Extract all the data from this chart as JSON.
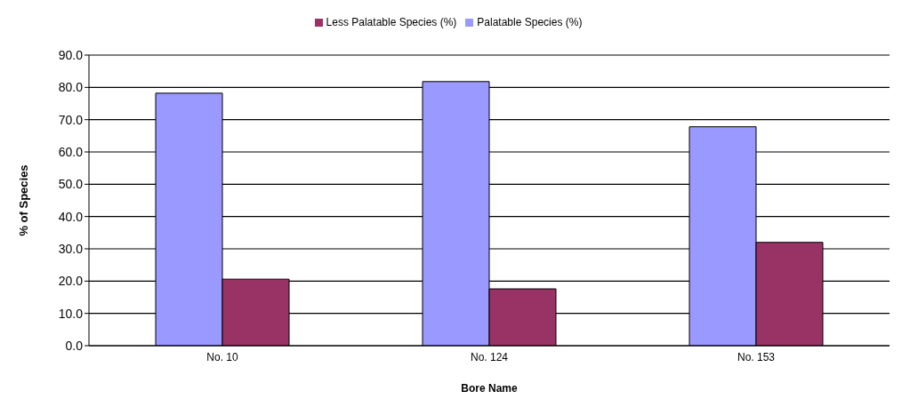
{
  "chart_data": {
    "type": "bar",
    "xlabel": "Bore Name",
    "ylabel": "% of Species",
    "categories": [
      "No. 10",
      "No. 124",
      "No. 153"
    ],
    "series": [
      {
        "name": "Palatable Species (%)",
        "color": "#9999ff",
        "values": [
          78.2,
          81.8,
          67.8
        ]
      },
      {
        "name": "Less Palatable Species (%)",
        "color": "#993366",
        "values": [
          20.6,
          17.6,
          32.0
        ]
      }
    ],
    "ylim": [
      0,
      90
    ],
    "yticks": [
      {
        "value": 0,
        "label": "0.0"
      },
      {
        "value": 10,
        "label": "10.0"
      },
      {
        "value": 20,
        "label": "20.0"
      },
      {
        "value": 30,
        "label": "30.0"
      },
      {
        "value": 40,
        "label": "40.0"
      },
      {
        "value": 50,
        "label": "50.0"
      },
      {
        "value": 60,
        "label": "60.0"
      },
      {
        "value": 70,
        "label": "70.0"
      },
      {
        "value": 80,
        "label": "80.0"
      },
      {
        "value": 90,
        "label": "90.0"
      }
    ],
    "grid": "y",
    "legend": "top"
  }
}
